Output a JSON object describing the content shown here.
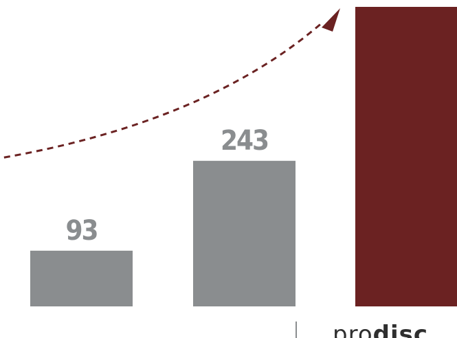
{
  "chart_data": {
    "type": "bar",
    "title": "",
    "xlabel": "",
    "ylabel": "",
    "ylim": [
      0,
      500
    ],
    "grid": false,
    "legend": "none",
    "categories": [
      "",
      "",
      ""
    ],
    "values": [
      93,
      243,
      500
    ],
    "data_labels": [
      "93",
      "243",
      ""
    ],
    "colors": {
      "default_bar": "#8a8d8f",
      "highlight_bar": "#6b2222",
      "label": "#8a8d8f",
      "trend_arrow": "#6b2222"
    },
    "annotations": [
      {
        "type": "dashed-trend-arrow",
        "direction": "up-right",
        "color": "#6b2222"
      }
    ]
  },
  "branding": {
    "logo_light": "pro",
    "logo_bold": "disc",
    "logo_color": "#2f2f2f"
  }
}
